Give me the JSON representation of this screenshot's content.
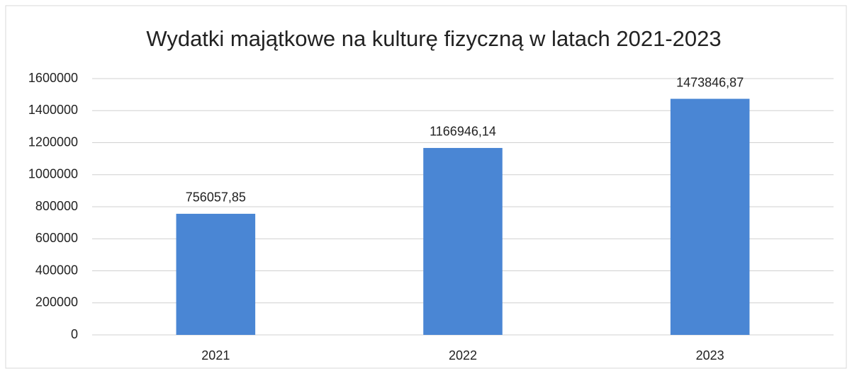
{
  "chart_data": {
    "type": "bar",
    "title": "Wydatki majątkowe na kulturę fizyczną w latach 2021-2023",
    "categories": [
      "2021",
      "2022",
      "2023"
    ],
    "values": [
      756057.85,
      1166946.14,
      1473846.87
    ],
    "value_labels": [
      "756057,85",
      "1166946,14",
      "1473846,87"
    ],
    "color": "#4a86d4",
    "ylim": [
      0,
      1600000
    ],
    "yticks": [
      0,
      200000,
      400000,
      600000,
      800000,
      1000000,
      1200000,
      1400000,
      1600000
    ],
    "grid": true
  }
}
